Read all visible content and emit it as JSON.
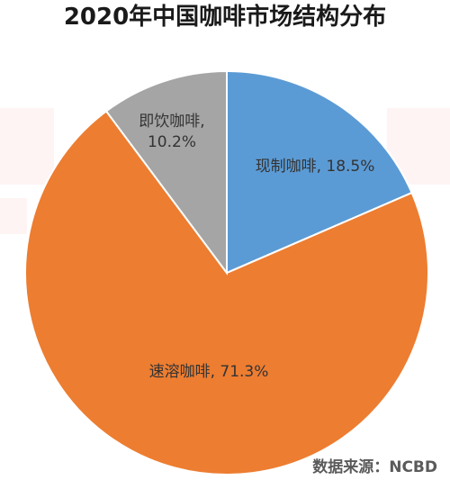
{
  "chart_data": {
    "type": "pie",
    "title": "2020年中国咖啡市场结构分布",
    "start_angle_deg": 0,
    "direction": "clockwise",
    "slices": [
      {
        "name": "现制咖啡",
        "value": 18.5,
        "display": "现制咖啡, 18.5%",
        "color": "#5b9bd5"
      },
      {
        "name": "速溶咖啡",
        "value": 71.3,
        "display": "速溶咖啡, 71.3%",
        "color": "#ed7d31"
      },
      {
        "name": "即饮咖啡",
        "value": 10.2,
        "display_line1": "即饮咖啡,",
        "display_line2": "10.2%",
        "color": "#a5a5a5"
      }
    ]
  },
  "source_text": "数据来源：NCBD"
}
